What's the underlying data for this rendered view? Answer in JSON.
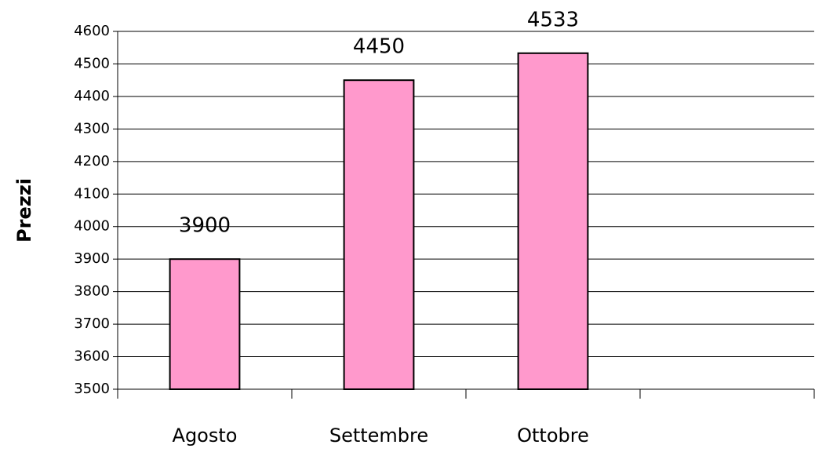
{
  "chart_data": {
    "type": "bar",
    "y_label": "Prezzi",
    "categories": [
      "Agosto",
      "Settembre",
      "Ottobre",
      null
    ],
    "values": [
      3900,
      4450,
      4533,
      null
    ],
    "color": "#ff99cc",
    "ylim": [
      3500,
      4600
    ],
    "yticks": [
      3500,
      3600,
      3700,
      3800,
      3900,
      4000,
      4100,
      4200,
      4300,
      4400,
      4500,
      4600
    ],
    "grid": true,
    "data_labels": true
  }
}
